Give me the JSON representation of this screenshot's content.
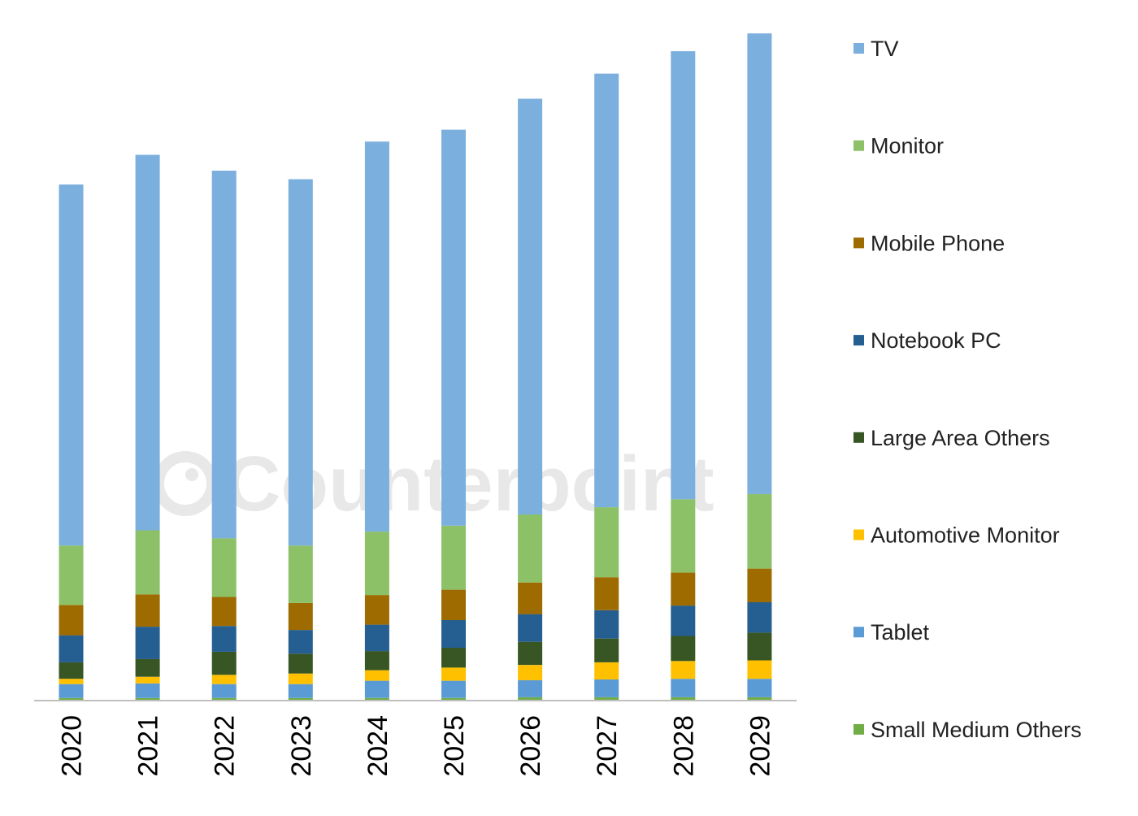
{
  "watermark": {
    "text": "Counterpoint"
  },
  "chart_data": {
    "type": "bar",
    "stacked": true,
    "orientation": "vertical",
    "categories": [
      "2020",
      "2021",
      "2022",
      "2023",
      "2024",
      "2025",
      "2026",
      "2027",
      "2028",
      "2029"
    ],
    "ylim": [
      0,
      100
    ],
    "grid": false,
    "legend_position": "right",
    "series": [
      {
        "name": "Small Medium Others",
        "color": "#70AD47",
        "values": [
          0.4,
          0.4,
          0.4,
          0.4,
          0.4,
          0.4,
          0.5,
          0.5,
          0.5,
          0.5
        ]
      },
      {
        "name": "Tablet",
        "color": "#5B9BD5",
        "values": [
          2.1,
          2.2,
          2.1,
          2.1,
          2.6,
          2.6,
          2.6,
          2.7,
          2.8,
          2.8
        ]
      },
      {
        "name": "Automotive Monitor",
        "color": "#FFC000",
        "values": [
          0.8,
          1.0,
          1.4,
          1.6,
          1.6,
          2.0,
          2.3,
          2.6,
          2.7,
          2.8
        ]
      },
      {
        "name": "Large Area Others",
        "color": "#375623",
        "values": [
          2.5,
          2.7,
          3.5,
          3.0,
          2.9,
          3.0,
          3.5,
          3.6,
          3.8,
          4.2
        ]
      },
      {
        "name": "Notebook PC",
        "color": "#255E91",
        "values": [
          4.1,
          4.9,
          3.9,
          3.6,
          4.0,
          4.2,
          4.2,
          4.3,
          4.6,
          4.6
        ]
      },
      {
        "name": "Mobile Phone",
        "color": "#9E6B00",
        "values": [
          4.6,
          4.9,
          4.4,
          4.1,
          4.5,
          4.6,
          4.8,
          5.0,
          5.0,
          5.1
        ]
      },
      {
        "name": "Monitor",
        "color": "#8CC168",
        "values": [
          9.0,
          9.7,
          8.9,
          8.7,
          9.6,
          9.7,
          10.3,
          10.6,
          11.1,
          11.3
        ]
      },
      {
        "name": "TV",
        "color": "#7BAFDE",
        "values": [
          54.7,
          56.9,
          55.7,
          55.5,
          59.1,
          60.0,
          63.0,
          65.7,
          67.9,
          69.8
        ]
      }
    ]
  },
  "legend_order": [
    "TV",
    "Monitor",
    "Mobile Phone",
    "Notebook PC",
    "Large Area Others",
    "Automotive Monitor",
    "Tablet",
    "Small Medium Others"
  ]
}
